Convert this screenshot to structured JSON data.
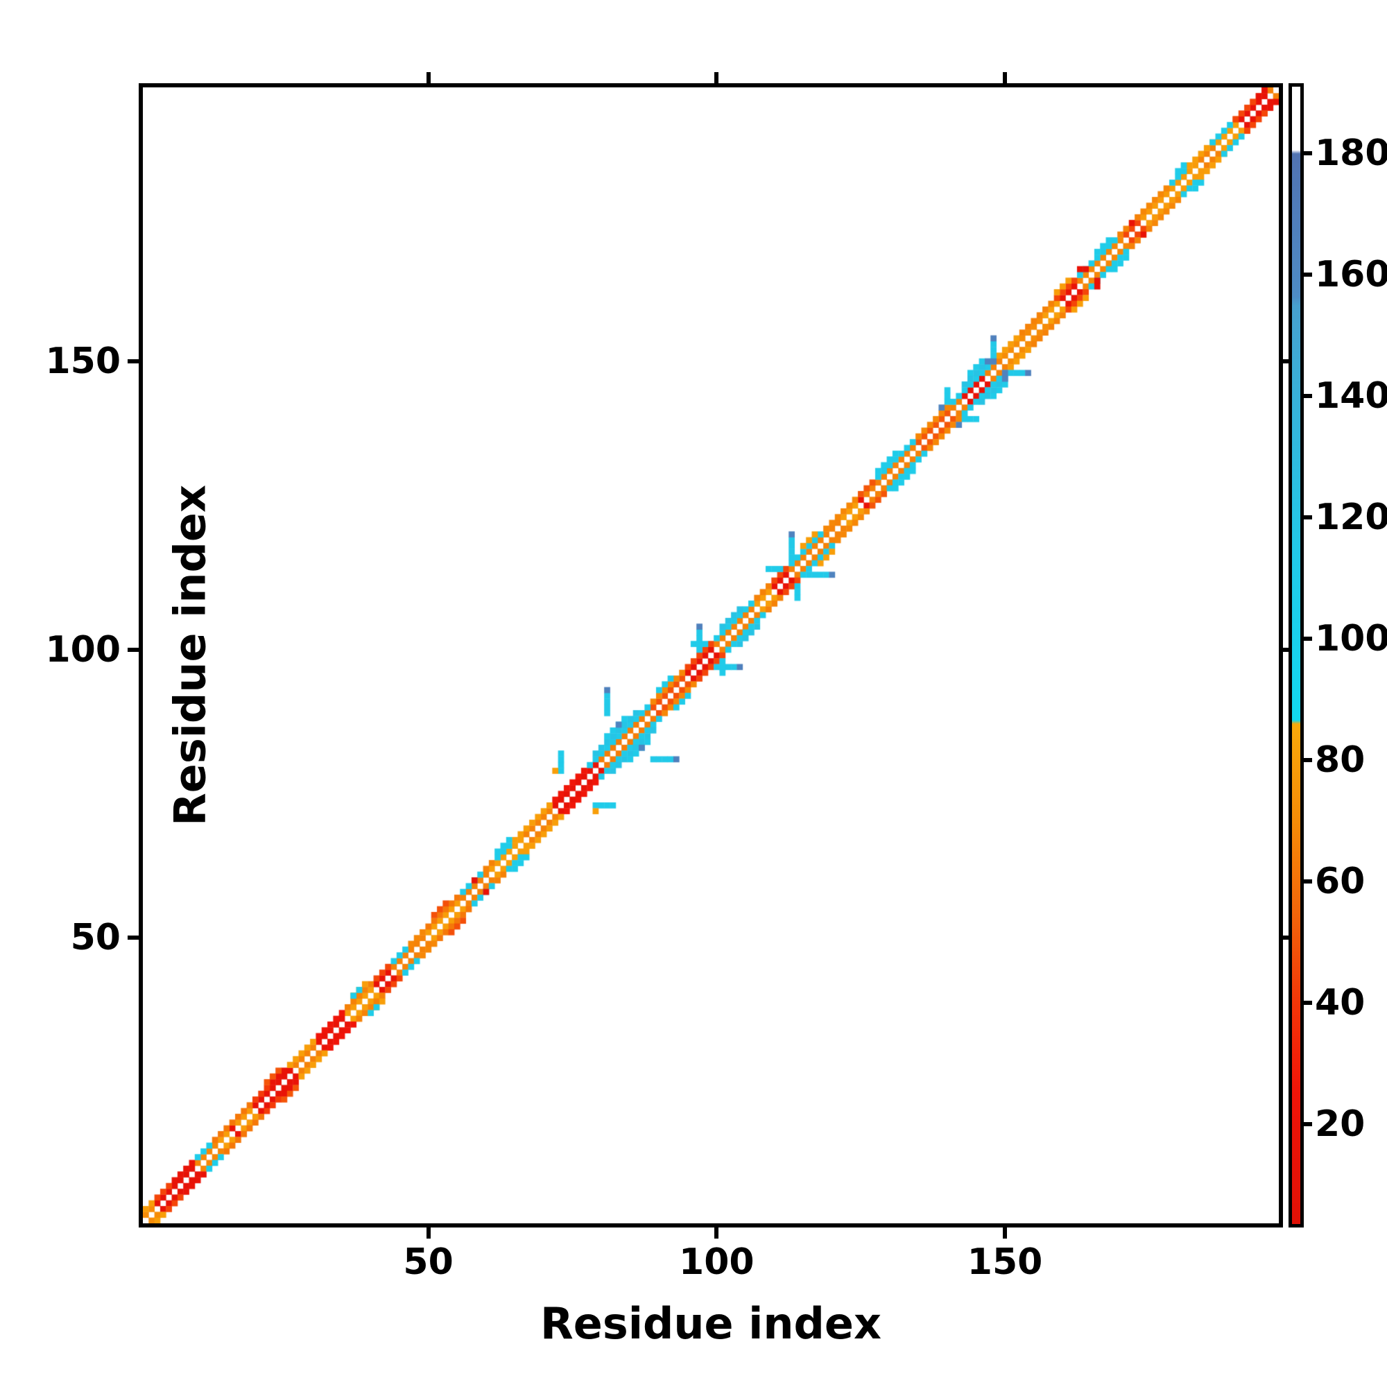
{
  "chart_data": {
    "type": "heatmap",
    "title": "",
    "xlabel": "Residue index",
    "ylabel": "Residue index",
    "n_residues": 197,
    "axis_ticks": [
      50,
      100,
      150
    ],
    "grid": false,
    "colorbar": {
      "ticks": [
        20,
        40,
        60,
        80,
        100,
        120,
        140,
        160,
        180
      ],
      "vmin": 3.5,
      "vmax": 191,
      "stops": [
        [
          3.5,
          "#e01106"
        ],
        [
          25,
          "#f01408"
        ],
        [
          40,
          "#f43608"
        ],
        [
          55,
          "#f4660a"
        ],
        [
          70,
          "#f68c07"
        ],
        [
          86,
          "#f9a90a"
        ],
        [
          86.6,
          "#12d8f0"
        ],
        [
          115,
          "#22c9e8"
        ],
        [
          140,
          "#38b2da"
        ],
        [
          155,
          "#47a0cf"
        ],
        [
          156.5,
          "#4e8cc6"
        ],
        [
          180,
          "#5173b2"
        ],
        [
          180.6,
          "#ffffff"
        ],
        [
          191,
          "#ffffff"
        ]
      ]
    },
    "matrix": {
      "symmetric": true,
      "diagonal_value": null,
      "segments": [
        [
          1,
          2,
          1,
          70
        ],
        [
          3,
          9,
          1,
          12
        ],
        [
          10,
          13,
          1,
          68
        ],
        [
          14,
          15,
          1,
          80
        ],
        [
          16,
          16,
          1,
          15
        ],
        [
          17,
          19,
          1,
          78
        ],
        [
          20,
          26,
          1,
          14
        ],
        [
          27,
          30,
          1,
          66
        ],
        [
          31,
          35,
          1,
          16
        ],
        [
          36,
          40,
          1,
          80
        ],
        [
          41,
          43,
          1,
          14
        ],
        [
          44,
          49,
          1,
          66
        ],
        [
          50,
          55,
          1,
          80
        ],
        [
          56,
          60,
          1,
          66
        ],
        [
          61,
          66,
          1,
          80
        ],
        [
          67,
          71,
          1,
          66
        ],
        [
          72,
          77,
          1,
          13
        ],
        [
          78,
          79,
          1,
          15
        ],
        [
          80,
          88,
          1,
          64
        ],
        [
          89,
          94,
          1,
          48
        ],
        [
          95,
          99,
          1,
          13
        ],
        [
          100,
          106,
          1,
          66
        ],
        [
          107,
          109,
          1,
          80
        ],
        [
          110,
          112,
          1,
          14
        ],
        [
          113,
          121,
          1,
          66
        ],
        [
          122,
          124,
          1,
          80
        ],
        [
          125,
          125,
          1,
          15
        ],
        [
          126,
          134,
          1,
          66
        ],
        [
          135,
          140,
          1,
          50
        ],
        [
          141,
          142,
          1,
          66
        ],
        [
          143,
          146,
          1,
          14
        ],
        [
          147,
          149,
          1,
          66
        ],
        [
          150,
          156,
          1,
          70
        ],
        [
          157,
          159,
          1,
          80
        ],
        [
          160,
          162,
          1,
          15
        ],
        [
          163,
          170,
          1,
          68
        ],
        [
          171,
          173,
          1,
          45
        ],
        [
          174,
          183,
          1,
          78
        ],
        [
          184,
          186,
          1,
          66
        ],
        [
          187,
          190,
          1,
          80
        ],
        [
          191,
          195,
          1,
          14
        ],
        [
          196,
          196,
          1,
          66
        ],
        [
          1,
          2,
          2,
          80
        ],
        [
          3,
          5,
          2,
          45
        ],
        [
          6,
          9,
          2,
          16
        ],
        [
          10,
          12,
          2,
          108
        ],
        [
          13,
          19,
          2,
          62
        ],
        [
          20,
          22,
          2,
          42
        ],
        [
          23,
          25,
          2,
          15
        ],
        [
          26,
          30,
          2,
          80
        ],
        [
          31,
          35,
          2,
          25
        ],
        [
          36,
          40,
          2,
          66
        ],
        [
          41,
          43,
          2,
          45
        ],
        [
          44,
          46,
          2,
          110
        ],
        [
          47,
          49,
          2,
          68
        ],
        [
          50,
          55,
          2,
          62
        ],
        [
          56,
          59,
          2,
          112
        ],
        [
          60,
          61,
          2,
          66
        ],
        [
          62,
          64,
          2,
          110
        ],
        [
          65,
          71,
          2,
          80
        ],
        [
          72,
          77,
          2,
          26
        ],
        [
          78,
          88,
          2,
          112
        ],
        [
          89,
          94,
          2,
          68
        ],
        [
          95,
          99,
          2,
          45
        ],
        [
          100,
          106,
          2,
          110
        ],
        [
          107,
          109,
          2,
          66
        ],
        [
          110,
          112,
          2,
          45
        ],
        [
          113,
          118,
          2,
          110
        ],
        [
          119,
          124,
          2,
          68
        ],
        [
          125,
          127,
          2,
          50
        ],
        [
          128,
          134,
          2,
          110
        ],
        [
          135,
          140,
          2,
          68
        ],
        [
          141,
          148,
          2,
          112
        ],
        [
          149,
          152,
          2,
          80
        ],
        [
          153,
          158,
          2,
          66
        ],
        [
          159,
          162,
          2,
          45
        ],
        [
          163,
          169,
          2,
          110
        ],
        [
          170,
          173,
          2,
          66
        ],
        [
          174,
          178,
          2,
          68
        ],
        [
          179,
          181,
          2,
          110
        ],
        [
          182,
          186,
          2,
          80
        ],
        [
          187,
          189,
          2,
          110
        ],
        [
          190,
          195,
          2,
          45
        ],
        [
          22,
          24,
          3,
          50
        ],
        [
          37,
          39,
          3,
          80
        ],
        [
          51,
          53,
          3,
          48
        ],
        [
          62,
          64,
          3,
          110
        ],
        [
          79,
          86,
          3,
          120
        ],
        [
          90,
          92,
          3,
          110
        ],
        [
          101,
          104,
          3,
          122
        ],
        [
          115,
          117,
          3,
          80
        ],
        [
          128,
          131,
          3,
          110
        ],
        [
          143,
          147,
          3,
          122
        ],
        [
          159,
          161,
          3,
          80
        ],
        [
          166,
          168,
          3,
          110
        ],
        [
          180,
          181,
          3,
          110
        ],
        [
          81,
          84,
          4,
          112
        ],
        [
          144,
          146,
          4,
          112
        ]
      ],
      "spurs": [
        [
          81,
          89,
          92,
          115
        ],
        [
          73,
          79,
          82,
          112
        ],
        [
          97,
          100,
          103,
          115
        ],
        [
          101,
          96,
          98,
          112
        ],
        [
          113,
          116,
          119,
          115
        ],
        [
          114,
          109,
          111,
          112
        ],
        [
          148,
          151,
          153,
          115
        ],
        [
          140,
          143,
          145,
          112
        ]
      ],
      "cells": [
        [
          81,
          93,
          168
        ],
        [
          97,
          104,
          168
        ],
        [
          113,
          120,
          165
        ],
        [
          148,
          154,
          168
        ],
        [
          147,
          150,
          165
        ],
        [
          148,
          150,
          165
        ],
        [
          83,
          87,
          165
        ],
        [
          139,
          142,
          165
        ],
        [
          72,
          79,
          80
        ],
        [
          163,
          166,
          14
        ],
        [
          164,
          166,
          14
        ],
        [
          172,
          174,
          15
        ],
        [
          186,
          188,
          110
        ],
        [
          37,
          40,
          110
        ],
        [
          38,
          41,
          110
        ],
        [
          58,
          60,
          14
        ],
        [
          190,
          192,
          45
        ],
        [
          194,
          196,
          14
        ],
        [
          195,
          197,
          12
        ],
        [
          193,
          195,
          45
        ]
      ]
    }
  }
}
